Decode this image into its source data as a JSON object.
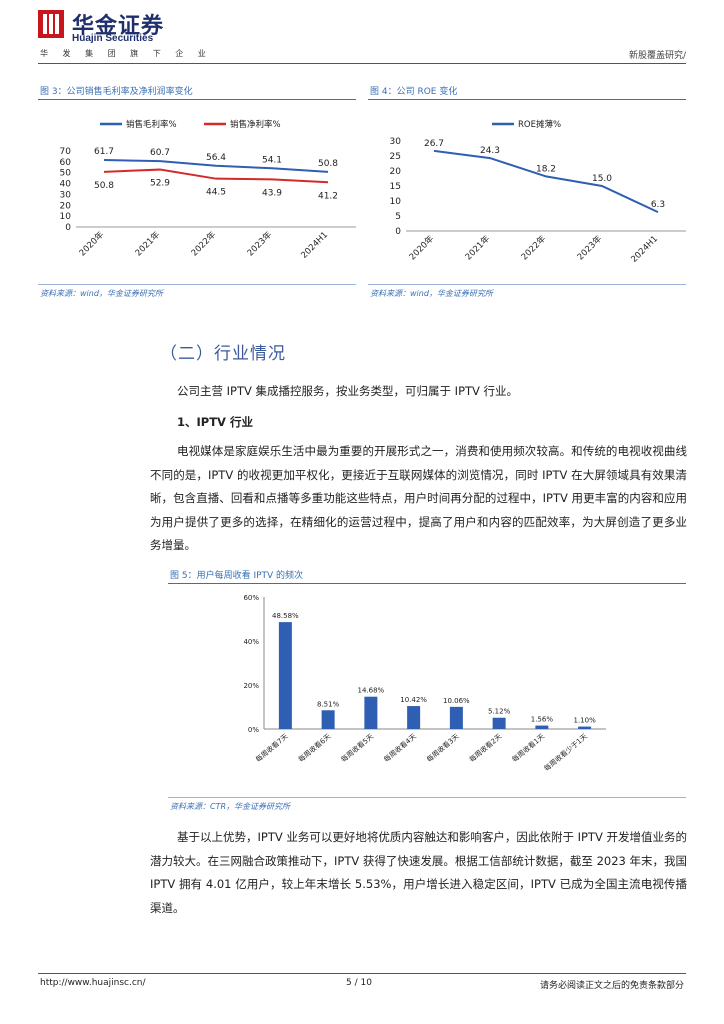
{
  "header": {
    "company_cn": "华金证券",
    "company_en": "Huajin Securities",
    "tagline": "华 发 集 团 旗 下 企 业",
    "report_type": "新股覆盖研究/"
  },
  "fig3": {
    "title": "图 3：公司销售毛利率及净利润率变化",
    "source": "资料来源：wind，华金证券研究所",
    "chart_data": {
      "type": "line",
      "categories": [
        "2020年",
        "2021年",
        "2022年",
        "2023年",
        "2024H1"
      ],
      "series": [
        {
          "name": "销售毛利率%",
          "color": "#2e5fb2",
          "values": [
            61.7,
            60.7,
            56.4,
            54.1,
            50.8
          ]
        },
        {
          "name": "销售净利率%",
          "color": "#d42a2a",
          "values": [
            50.8,
            52.9,
            44.5,
            43.9,
            41.2
          ]
        }
      ],
      "ylim": [
        0,
        70
      ],
      "yticks": [
        "0",
        "10",
        "20",
        "30",
        "40",
        "50",
        "60",
        "70"
      ],
      "legend": "top"
    }
  },
  "fig4": {
    "title": "图 4：公司 ROE 变化",
    "source": "资料来源：wind，华金证券研究所",
    "chart_data": {
      "type": "line",
      "categories": [
        "2020年",
        "2021年",
        "2022年",
        "2023年",
        "2024H1"
      ],
      "series": [
        {
          "name": "ROE摊薄%",
          "color": "#2e5fb2",
          "values": [
            26.7,
            24.3,
            18.2,
            15.0,
            6.3
          ]
        }
      ],
      "ylim": [
        0,
        30
      ],
      "yticks": [
        "0",
        "5",
        "10",
        "15",
        "20",
        "25",
        "30"
      ],
      "legend": "top"
    }
  },
  "section": {
    "heading": "（二）行业情况",
    "intro": "公司主营 IPTV 集成播控服务，按业务类型，可归属于 IPTV 行业。",
    "subheading": "1、IPTV 行业",
    "para1": "电视媒体是家庭娱乐生活中最为重要的开展形式之一，消费和使用频次较高。和传统的电视收视曲线不同的是，IPTV 的收视更加平权化，更接近于互联网媒体的浏览情况，同时 IPTV 在大屏领域具有效果清晰，包含直播、回看和点播等多重功能这些特点，用户时间再分配的过程中，IPTV 用更丰富的内容和应用为用户提供了更多的选择，在精细化的运营过程中，提高了用户和内容的匹配效率，为大屏创造了更多业务增量。",
    "para2": "基于以上优势，IPTV 业务可以更好地将优质内容触达和影响客户，因此依附于 IPTV 开发增值业务的潜力较大。在三网融合政策推动下，IPTV 获得了快速发展。根据工信部统计数据，截至 2023 年末，我国 IPTV 拥有 4.01 亿用户，较上年末增长 5.53%，用户增长进入稳定区间，IPTV 已成为全国主流电视传播渠道。"
  },
  "fig5": {
    "title": "图 5：用户每周收看 IPTV 的频次",
    "source": "资料来源：CTR，华金证券研究所",
    "chart_data": {
      "type": "bar",
      "categories": [
        "每周收看7天",
        "每周收看6天",
        "每周收看5天",
        "每周收看4天",
        "每周收看3天",
        "每周收看2天",
        "每周收看1天",
        "每周收看少于1天"
      ],
      "values": [
        48.58,
        8.51,
        14.68,
        10.42,
        10.06,
        5.12,
        1.56,
        1.1
      ],
      "labels": [
        "48.58%",
        "8.51%",
        "14.68%",
        "10.42%",
        "10.06%",
        "5.12%",
        "1.56%",
        "1.10%"
      ],
      "ylim": [
        0,
        60
      ],
      "yticks": [
        "0%",
        "20%",
        "40%",
        "60%"
      ],
      "color": "#2e5fb2"
    }
  },
  "footer": {
    "url": "http://www.huajinsc.cn/",
    "page": "5 / 10",
    "disclaimer": "请务必阅读正文之后的免责条款部分"
  }
}
